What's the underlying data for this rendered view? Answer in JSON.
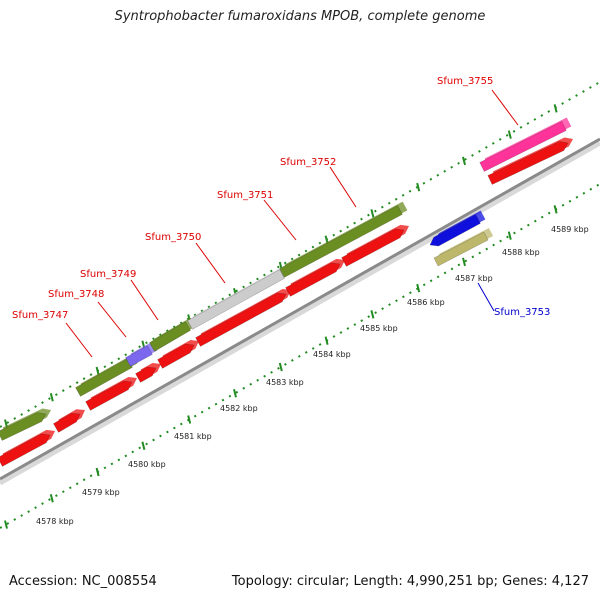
{
  "title": "Syntrophobacter fumaroxidans MPOB, complete genome",
  "footer": {
    "accession": "Accession: NC_008554",
    "topology": "Topology: circular; Length: 4,990,251 bp; Genes: 4,127"
  },
  "colors": {
    "backbone": "#8a8a8a",
    "forward_cds": "#6b8e23",
    "reverse_cds": "#ee1111",
    "highlight_gene": "#ff3399",
    "grey_gene": "#cccccc",
    "purple_gene": "#7b68ee",
    "blue_gene": "#1010dd",
    "khaki_gene": "#bdb76b",
    "tick": "#228b22",
    "label_red": "#dd0000",
    "label_blue": "#0000cc"
  },
  "scale_labels": [
    "4578 kbp",
    "4579 kbp",
    "4580 kbp",
    "4581 kbp",
    "4582 kbp",
    "4583 kbp",
    "4584 kbp",
    "4585 kbp",
    "4586 kbp",
    "4587 kbp",
    "4588 kbp",
    "4589 kbp"
  ],
  "gene_labels": [
    {
      "text": "Sfum_3747",
      "color": "label_red"
    },
    {
      "text": "Sfum_3748",
      "color": "label_red"
    },
    {
      "text": "Sfum_3749",
      "color": "label_red"
    },
    {
      "text": "Sfum_3750",
      "color": "label_red"
    },
    {
      "text": "Sfum_3751",
      "color": "label_red"
    },
    {
      "text": "Sfum_3752",
      "color": "label_red"
    },
    {
      "text": "Sfum_3755",
      "color": "label_red"
    },
    {
      "text": "Sfum_3753",
      "color": "label_blue"
    }
  ]
}
